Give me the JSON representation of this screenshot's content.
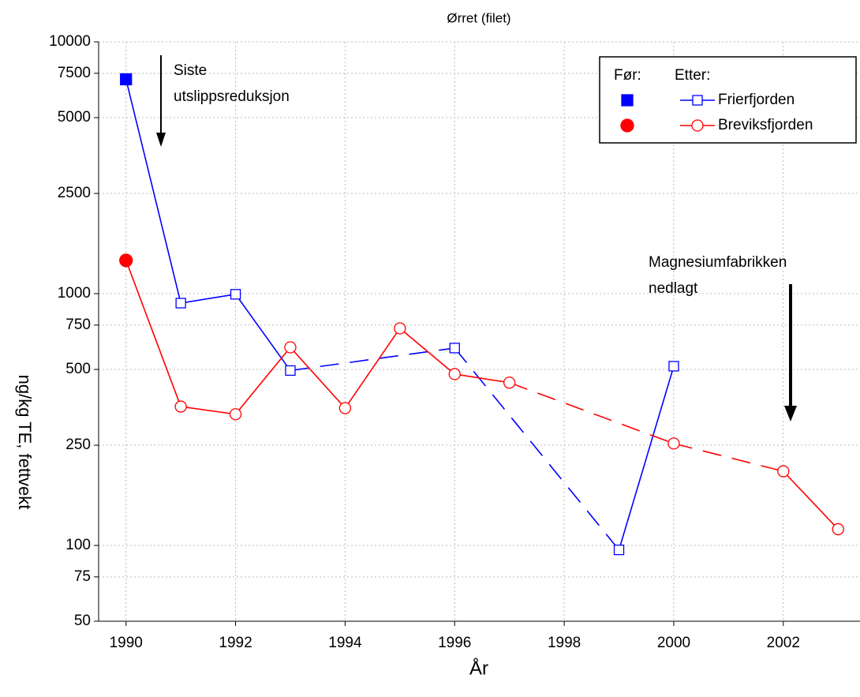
{
  "chart_data": {
    "type": "line",
    "title": "Ørret (filet)",
    "x_label": "År",
    "y_label": "ng/kg TE, fettvekt",
    "log_y": true,
    "grid": true,
    "xlim": [
      1989.5,
      2003.4
    ],
    "xticks": [
      1990,
      1992,
      1994,
      1996,
      1998,
      2000,
      2002
    ],
    "ylim": [
      50,
      10000
    ],
    "yticks": [
      50,
      75,
      100,
      250,
      500,
      750,
      1000,
      2500,
      5000,
      7500,
      10000
    ],
    "legend_headers": [
      "Før:",
      "Etter:"
    ],
    "legend_position": "upper right",
    "series": [
      {
        "name": "Frierfjorden",
        "color": "#0000ff",
        "marker": "square",
        "x": [
          1990,
          1991,
          1992,
          1993,
          1996,
          1999,
          2000
        ],
        "values": [
          7100,
          917,
          994,
          495,
          608,
          96,
          515
        ],
        "marker_fill": [
          "filled",
          "open",
          "open",
          "open",
          "open",
          "open",
          "open"
        ],
        "line_styles": [
          "solid",
          "solid",
          "solid",
          "dashed",
          "dashed",
          "solid"
        ]
      },
      {
        "name": "Breviksfjorden",
        "color": "#ff0000",
        "marker": "circle",
        "x": [
          1990,
          1991,
          1992,
          1993,
          1994,
          1995,
          1996,
          1997,
          2000,
          2002,
          2003
        ],
        "values": [
          1355,
          356,
          332,
          612,
          351,
          728,
          479,
          443,
          254,
          197,
          116
        ],
        "marker_fill": [
          "filled",
          "open",
          "open",
          "open",
          "open",
          "open",
          "open",
          "open",
          "open",
          "open",
          "open"
        ],
        "line_styles": [
          "solid",
          "solid",
          "solid",
          "solid",
          "solid",
          "solid",
          "solid",
          "dashed",
          "dashed",
          "solid"
        ]
      }
    ],
    "annotations": [
      {
        "lines": [
          "Siste",
          "utslippsreduksjon"
        ]
      },
      {
        "lines": [
          "Magnesiumfabrikken",
          "nedlagt"
        ]
      }
    ]
  }
}
